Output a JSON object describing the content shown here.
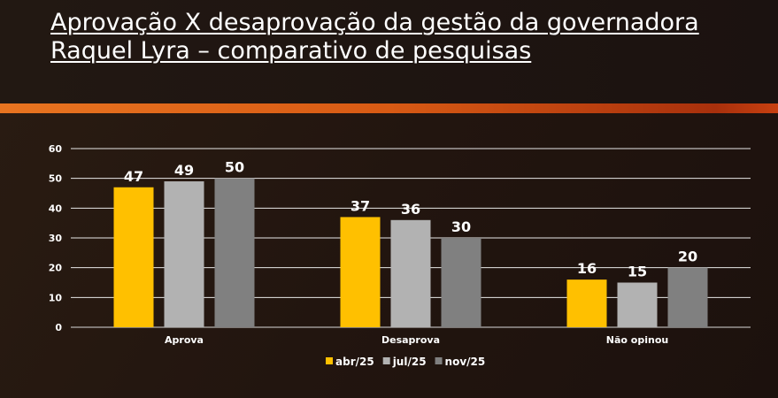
{
  "title_line1": "Aprovação X desaprovação da gestão da governadora",
  "title_line2": "Raquel Lyra – comparativo de pesquisas",
  "chart_data": {
    "type": "bar",
    "categories": [
      "Aprova",
      "Desaprova",
      "Não opinou"
    ],
    "series": [
      {
        "name": "abr/25",
        "values": [
          47,
          37,
          16
        ],
        "color": "#FFC000"
      },
      {
        "name": "jul/25",
        "values": [
          49,
          36,
          15
        ],
        "color": "#B2B2B2"
      },
      {
        "name": "nov/25",
        "values": [
          50,
          30,
          20
        ],
        "color": "#808080"
      }
    ],
    "ylim": [
      0,
      60
    ],
    "yticks": [
      0,
      10,
      20,
      30,
      40,
      50,
      60
    ],
    "grid": true,
    "legend": "bottom",
    "data_labels": true
  }
}
